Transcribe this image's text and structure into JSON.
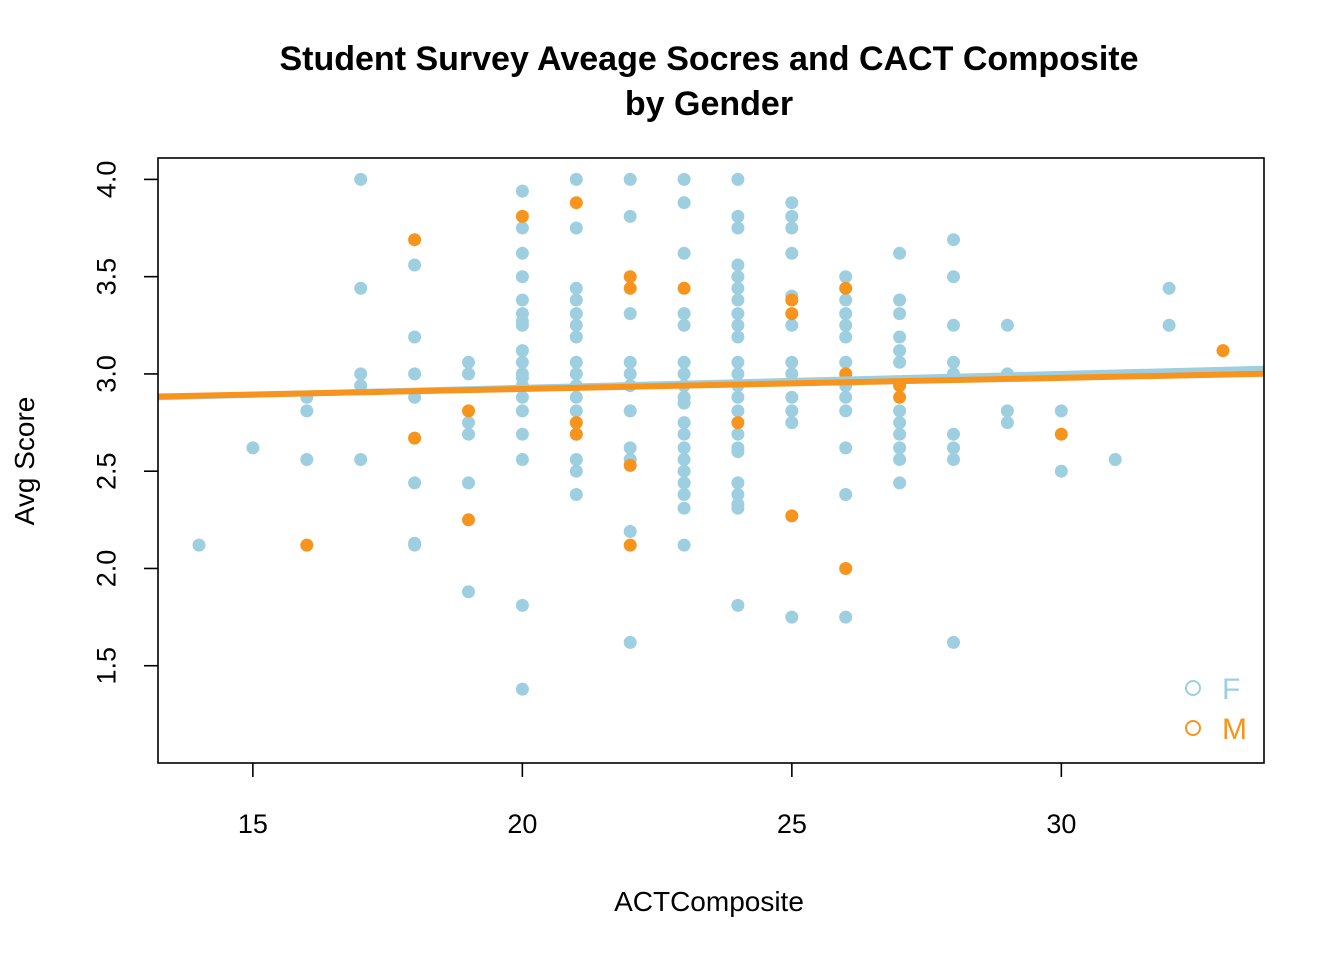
{
  "chart_data": {
    "type": "scatter",
    "title": [
      "Student Survey Aveage Socres and CACT Composite",
      "by Gender"
    ],
    "xlabel": "ACTComposite",
    "ylabel": "Avg Score",
    "xlim": [
      13.24,
      33.76
    ],
    "ylim": [
      1.0,
      4.11
    ],
    "xticks": [
      15,
      20,
      25,
      30
    ],
    "yticks": [
      1.5,
      2.0,
      2.5,
      3.0,
      3.5,
      4.0
    ],
    "xtick_labels": [
      "15",
      "20",
      "25",
      "30"
    ],
    "ytick_labels": [
      "1.5",
      "2.0",
      "2.5",
      "3.0",
      "3.5",
      "4.0"
    ],
    "grid": false,
    "legend_position": "bottom-right",
    "series": [
      {
        "name": "F",
        "color": "#9ecfe0",
        "points": [
          [
            14,
            2.12
          ],
          [
            15,
            2.62
          ],
          [
            16,
            2.88
          ],
          [
            16,
            2.81
          ],
          [
            16,
            2.56
          ],
          [
            17,
            4.0
          ],
          [
            17,
            3.44
          ],
          [
            17,
            3.0
          ],
          [
            17,
            2.94
          ],
          [
            17,
            2.56
          ],
          [
            18,
            3.56
          ],
          [
            18,
            3.19
          ],
          [
            18,
            3.0
          ],
          [
            18,
            2.88
          ],
          [
            18,
            2.44
          ],
          [
            18,
            2.13
          ],
          [
            18,
            2.12
          ],
          [
            19,
            3.06
          ],
          [
            19,
            3.0
          ],
          [
            19,
            2.75
          ],
          [
            19,
            2.69
          ],
          [
            19,
            2.44
          ],
          [
            19,
            1.88
          ],
          [
            20,
            3.94
          ],
          [
            20,
            3.75
          ],
          [
            20,
            3.62
          ],
          [
            20,
            3.5
          ],
          [
            20,
            3.38
          ],
          [
            20,
            3.31
          ],
          [
            20,
            3.27
          ],
          [
            20,
            3.25
          ],
          [
            20,
            3.12
          ],
          [
            20,
            3.06
          ],
          [
            20,
            3.0
          ],
          [
            20,
            2.98
          ],
          [
            20,
            2.94
          ],
          [
            20,
            2.88
          ],
          [
            20,
            2.81
          ],
          [
            20,
            2.69
          ],
          [
            20,
            2.56
          ],
          [
            20,
            1.81
          ],
          [
            20,
            1.38
          ],
          [
            21,
            4.0
          ],
          [
            21,
            3.75
          ],
          [
            21,
            3.44
          ],
          [
            21,
            3.38
          ],
          [
            21,
            3.31
          ],
          [
            21,
            3.25
          ],
          [
            21,
            3.19
          ],
          [
            21,
            3.06
          ],
          [
            21,
            3.0
          ],
          [
            21,
            2.94
          ],
          [
            21,
            2.88
          ],
          [
            21,
            2.81
          ],
          [
            21,
            2.69
          ],
          [
            21,
            2.56
          ],
          [
            21,
            2.5
          ],
          [
            21,
            2.38
          ],
          [
            22,
            4.0
          ],
          [
            22,
            3.81
          ],
          [
            22,
            3.31
          ],
          [
            22,
            3.06
          ],
          [
            22,
            3.0
          ],
          [
            22,
            2.94
          ],
          [
            22,
            2.81
          ],
          [
            22,
            2.62
          ],
          [
            22,
            2.56
          ],
          [
            22,
            2.19
          ],
          [
            22,
            1.62
          ],
          [
            23,
            4.0
          ],
          [
            23,
            3.88
          ],
          [
            23,
            3.62
          ],
          [
            23,
            3.31
          ],
          [
            23,
            3.25
          ],
          [
            23,
            3.06
          ],
          [
            23,
            3.0
          ],
          [
            23,
            2.94
          ],
          [
            23,
            2.88
          ],
          [
            23,
            2.85
          ],
          [
            23,
            2.75
          ],
          [
            23,
            2.69
          ],
          [
            23,
            2.62
          ],
          [
            23,
            2.56
          ],
          [
            23,
            2.5
          ],
          [
            23,
            2.44
          ],
          [
            23,
            2.38
          ],
          [
            23,
            2.31
          ],
          [
            23,
            2.12
          ],
          [
            24,
            4.0
          ],
          [
            24,
            3.81
          ],
          [
            24,
            3.75
          ],
          [
            24,
            3.56
          ],
          [
            24,
            3.5
          ],
          [
            24,
            3.44
          ],
          [
            24,
            3.38
          ],
          [
            24,
            3.31
          ],
          [
            24,
            3.25
          ],
          [
            24,
            3.19
          ],
          [
            24,
            3.06
          ],
          [
            24,
            3.0
          ],
          [
            24,
            2.94
          ],
          [
            24,
            2.88
          ],
          [
            24,
            2.81
          ],
          [
            24,
            2.69
          ],
          [
            24,
            2.62
          ],
          [
            24,
            2.6
          ],
          [
            24,
            2.44
          ],
          [
            24,
            2.38
          ],
          [
            24,
            2.33
          ],
          [
            24,
            2.31
          ],
          [
            24,
            1.81
          ],
          [
            25,
            3.88
          ],
          [
            25,
            3.81
          ],
          [
            25,
            3.75
          ],
          [
            25,
            3.62
          ],
          [
            25,
            3.4
          ],
          [
            25,
            3.25
          ],
          [
            25,
            3.06
          ],
          [
            25,
            3.0
          ],
          [
            25,
            2.88
          ],
          [
            25,
            2.81
          ],
          [
            25,
            2.75
          ],
          [
            25,
            1.75
          ],
          [
            26,
            3.5
          ],
          [
            26,
            3.38
          ],
          [
            26,
            3.31
          ],
          [
            26,
            3.25
          ],
          [
            26,
            3.19
          ],
          [
            26,
            3.06
          ],
          [
            26,
            2.94
          ],
          [
            26,
            2.88
          ],
          [
            26,
            2.81
          ],
          [
            26,
            2.62
          ],
          [
            26,
            2.38
          ],
          [
            26,
            1.75
          ],
          [
            27,
            3.62
          ],
          [
            27,
            3.38
          ],
          [
            27,
            3.31
          ],
          [
            27,
            3.19
          ],
          [
            27,
            3.12
          ],
          [
            27,
            3.06
          ],
          [
            27,
            2.81
          ],
          [
            27,
            2.75
          ],
          [
            27,
            2.69
          ],
          [
            27,
            2.62
          ],
          [
            27,
            2.56
          ],
          [
            27,
            2.44
          ],
          [
            28,
            3.69
          ],
          [
            28,
            3.5
          ],
          [
            28,
            3.25
          ],
          [
            28,
            3.06
          ],
          [
            28,
            3.0
          ],
          [
            28,
            2.69
          ],
          [
            28,
            2.62
          ],
          [
            28,
            2.56
          ],
          [
            28,
            1.62
          ],
          [
            29,
            3.25
          ],
          [
            29,
            3.0
          ],
          [
            29,
            2.81
          ],
          [
            29,
            2.75
          ],
          [
            30,
            2.81
          ],
          [
            30,
            2.5
          ],
          [
            31,
            2.56
          ],
          [
            32,
            3.44
          ],
          [
            32,
            3.25
          ]
        ],
        "fit": {
          "intercept": 2.7857,
          "slope": 0.00714
        }
      },
      {
        "name": "M",
        "color": "#f7941d",
        "points": [
          [
            16,
            2.12
          ],
          [
            18,
            3.69
          ],
          [
            18,
            2.67
          ],
          [
            19,
            2.81
          ],
          [
            19,
            2.25
          ],
          [
            20,
            3.81
          ],
          [
            21,
            3.88
          ],
          [
            21,
            2.75
          ],
          [
            21,
            2.69
          ],
          [
            22,
            3.5
          ],
          [
            22,
            3.44
          ],
          [
            22,
            2.53
          ],
          [
            22,
            2.12
          ],
          [
            23,
            3.44
          ],
          [
            24,
            2.75
          ],
          [
            25,
            3.38
          ],
          [
            25,
            3.31
          ],
          [
            25,
            2.27
          ],
          [
            26,
            3.44
          ],
          [
            26,
            3.0
          ],
          [
            26,
            2.0
          ],
          [
            27,
            2.94
          ],
          [
            27,
            2.88
          ],
          [
            30,
            2.69
          ],
          [
            33,
            3.12
          ]
        ],
        "fit": {
          "intercept": 2.8086,
          "slope": 0.00571
        }
      }
    ]
  }
}
